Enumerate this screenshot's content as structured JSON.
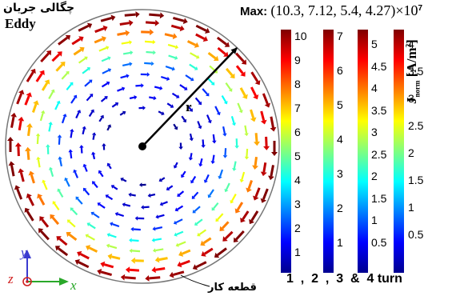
{
  "labels": {
    "eddy_fa": "چگالی جریان",
    "eddy_en": "Eddy",
    "radius": "r",
    "workpiece": "قطعه کار",
    "axis_x": "x",
    "axis_y": "y",
    "axis_z": "z"
  },
  "max_label": {
    "prefix": "Max:",
    "values": "(10.3,  7.12,  5.4,   4.27)",
    "multiplier": "×10",
    "exponent": "7"
  },
  "colorbar_unit": {
    "symbol": "J",
    "subscript": "norm",
    "unit": "[A/m",
    "unit_exp": "2",
    "unit_end": "]"
  },
  "colorbars": [
    {
      "ticks": [
        "10",
        "9",
        "8",
        "7",
        "6",
        "5",
        "4",
        "3",
        "2",
        "1"
      ]
    },
    {
      "ticks": [
        "7",
        "6",
        "5",
        "4",
        "3",
        "2",
        "1"
      ]
    },
    {
      "ticks": [
        "5",
        "4.5",
        "4",
        "3.5",
        "3",
        "2.5",
        "2",
        "1.5",
        "1",
        "0.5"
      ]
    },
    {
      "ticks": [
        "4",
        "3.5",
        "3",
        "2.5",
        "2",
        "1.5",
        "1",
        "0.5"
      ]
    }
  ],
  "turns_label": "1  ,  2  ,  3  &  4 turn",
  "colors": {
    "jet_low": "#00008f",
    "jet_mid": "#00ffff",
    "jet_high": "#7f0000",
    "axis_red": "#d02020",
    "axis_green": "#2aa82a",
    "axis_blue": "#3a3ad0"
  }
}
